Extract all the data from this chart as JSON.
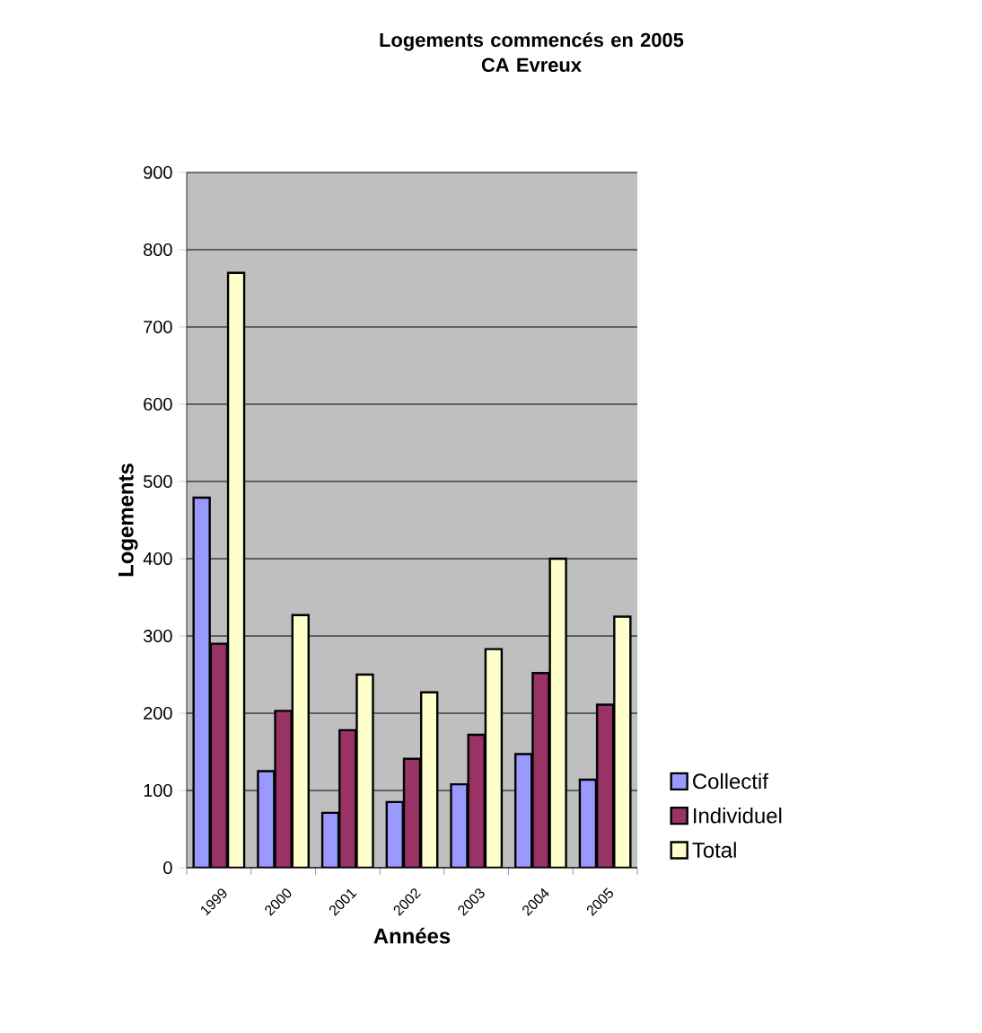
{
  "chart_data": {
    "type": "bar",
    "title": "Logements commencés en 2005\nCA Evreux",
    "xlabel": "Années",
    "ylabel": "Logements",
    "categories": [
      "1999",
      "2000",
      "2001",
      "2002",
      "2003",
      "2004",
      "2005"
    ],
    "series": [
      {
        "name": "Collectif",
        "color": "#9999ff",
        "values": [
          479,
          125,
          71,
          85,
          108,
          147,
          114
        ]
      },
      {
        "name": "Individuel",
        "color": "#993366",
        "values": [
          290,
          203,
          178,
          141,
          172,
          252,
          211
        ]
      },
      {
        "name": "Total",
        "color": "#ffffcc",
        "values": [
          770,
          327,
          250,
          227,
          283,
          400,
          325
        ]
      }
    ],
    "ylim": [
      0,
      900
    ],
    "yticks": [
      0,
      100,
      200,
      300,
      400,
      500,
      600,
      700,
      800,
      900
    ],
    "grid": "y",
    "legend": "right"
  }
}
